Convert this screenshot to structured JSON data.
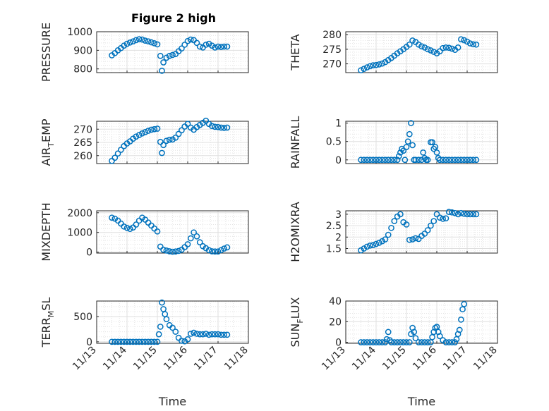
{
  "figure": {
    "title": "Figure 2 high"
  },
  "colors": {
    "series": "#0072bd",
    "axes": "#262626",
    "grid": "#dfdfdf",
    "background": "#ffffff"
  },
  "chart_data": [
    {
      "type": "scatter",
      "id": "pressure",
      "title": "Figure 2 high",
      "ylabel": "PRESSURE",
      "xlim": [
        0,
        5
      ],
      "ylim": [
        780,
        1000
      ],
      "yticks": [
        800,
        900,
        1000
      ],
      "yticklabels": [
        "800",
        "900",
        "1000"
      ],
      "xtick_labels": [],
      "xlabel": "",
      "grid": true,
      "x": [
        0.5,
        0.6,
        0.7,
        0.8,
        0.9,
        1.0,
        1.1,
        1.2,
        1.3,
        1.4,
        1.5,
        1.6,
        1.7,
        1.8,
        1.9,
        2.0,
        2.1,
        2.15,
        2.2,
        2.3,
        2.4,
        2.5,
        2.6,
        2.7,
        2.8,
        2.9,
        3.0,
        3.1,
        3.2,
        3.3,
        3.4,
        3.5,
        3.6,
        3.7,
        3.8,
        3.9,
        4.0,
        4.1,
        4.2,
        4.3
      ],
      "y": [
        873,
        885,
        900,
        912,
        925,
        935,
        942,
        948,
        955,
        960,
        958,
        952,
        948,
        943,
        938,
        932,
        870,
        790,
        835,
        860,
        870,
        875,
        880,
        895,
        910,
        930,
        950,
        958,
        955,
        940,
        920,
        915,
        930,
        935,
        925,
        915,
        920,
        918,
        920,
        920
      ]
    },
    {
      "type": "scatter",
      "id": "theta",
      "ylabel": "THETA",
      "xlim": [
        0,
        5
      ],
      "ylim": [
        267,
        281
      ],
      "yticks": [
        270,
        275,
        280
      ],
      "yticklabels": [
        "270",
        "275",
        "280"
      ],
      "xtick_labels": [],
      "xlabel": "",
      "grid": true,
      "x": [
        0.5,
        0.6,
        0.7,
        0.8,
        0.9,
        1.0,
        1.1,
        1.2,
        1.3,
        1.4,
        1.5,
        1.6,
        1.7,
        1.8,
        1.9,
        2.0,
        2.1,
        2.2,
        2.3,
        2.4,
        2.5,
        2.6,
        2.7,
        2.8,
        2.9,
        3.0,
        3.1,
        3.2,
        3.3,
        3.4,
        3.5,
        3.6,
        3.7,
        3.8,
        3.9,
        4.0,
        4.1,
        4.2,
        4.3
      ],
      "y": [
        267.8,
        268.3,
        268.8,
        269.2,
        269.5,
        269.6,
        269.8,
        270.1,
        270.6,
        271.3,
        272.0,
        272.8,
        273.6,
        274.3,
        275.0,
        275.8,
        276.6,
        278.0,
        277.5,
        276.6,
        276.0,
        275.6,
        275.0,
        274.6,
        274.1,
        273.6,
        274.3,
        275.4,
        275.6,
        275.5,
        275.2,
        274.8,
        275.6,
        278.4,
        278.1,
        277.6,
        277.0,
        276.7,
        276.6
      ]
    },
    {
      "type": "scatter",
      "id": "air_temp",
      "ylabel": "AIR_TEMP",
      "ylabel_parts": {
        "main": "AIR",
        "sub": "T",
        "rest": "EMP"
      },
      "xlim": [
        0,
        5
      ],
      "ylim": [
        257,
        273
      ],
      "yticks": [
        260,
        265,
        270
      ],
      "yticklabels": [
        "260",
        "265",
        "270"
      ],
      "xtick_labels": [],
      "xlabel": "",
      "grid": true,
      "x": [
        0.5,
        0.6,
        0.7,
        0.8,
        0.9,
        1.0,
        1.1,
        1.2,
        1.3,
        1.4,
        1.5,
        1.6,
        1.7,
        1.8,
        1.9,
        2.0,
        2.1,
        2.15,
        2.2,
        2.3,
        2.4,
        2.5,
        2.6,
        2.7,
        2.8,
        2.9,
        3.0,
        3.1,
        3.2,
        3.3,
        3.4,
        3.5,
        3.6,
        3.7,
        3.8,
        3.9,
        4.0,
        4.1,
        4.2,
        4.3
      ],
      "y": [
        258.0,
        259.2,
        260.8,
        262.2,
        263.6,
        264.6,
        265.4,
        266.4,
        267.2,
        267.8,
        268.4,
        268.9,
        269.4,
        269.8,
        270.0,
        270.2,
        265.2,
        261.0,
        264.0,
        265.6,
        266.0,
        266.1,
        266.8,
        268.2,
        269.6,
        271.0,
        272.0,
        270.6,
        269.8,
        270.8,
        271.6,
        272.4,
        273.2,
        272.0,
        271.2,
        270.9,
        270.8,
        270.6,
        270.5,
        270.6
      ]
    },
    {
      "type": "scatter",
      "id": "rainfall",
      "ylabel": "RAINFALL",
      "xlim": [
        0,
        5
      ],
      "ylim": [
        -0.1,
        1.05
      ],
      "yticks": [
        0,
        0.5,
        1
      ],
      "yticklabels": [
        "0",
        "0.5",
        "1"
      ],
      "xtick_labels": [],
      "xlabel": "",
      "grid": true,
      "x": [
        0.5,
        0.6,
        0.7,
        0.8,
        0.9,
        1.0,
        1.1,
        1.2,
        1.3,
        1.4,
        1.5,
        1.6,
        1.7,
        1.75,
        1.8,
        1.85,
        1.9,
        1.95,
        2.0,
        2.05,
        2.1,
        2.15,
        2.2,
        2.25,
        2.3,
        2.4,
        2.5,
        2.55,
        2.6,
        2.65,
        2.7,
        2.8,
        2.85,
        2.9,
        2.95,
        3.0,
        3.05,
        3.1,
        3.2,
        3.3,
        3.4,
        3.5,
        3.6,
        3.7,
        3.8,
        3.9,
        4.0,
        4.1,
        4.2,
        4.3
      ],
      "y": [
        0,
        0,
        0,
        0,
        0,
        0,
        0,
        0,
        0,
        0,
        0,
        0,
        0,
        0.1,
        0.2,
        0.3,
        0.25,
        0,
        0.35,
        0.5,
        0.7,
        1.0,
        0.4,
        0,
        0,
        0,
        0,
        0.2,
        0.05,
        0,
        0,
        0.48,
        0.48,
        0.3,
        0.35,
        0.2,
        0.05,
        0,
        0,
        0,
        0,
        0,
        0,
        0,
        0,
        0,
        0,
        0,
        0,
        0
      ]
    },
    {
      "type": "scatter",
      "id": "mixdepth",
      "ylabel": "MIXDEPTH",
      "xlim": [
        0,
        5
      ],
      "ylim": [
        -50,
        2100
      ],
      "yticks": [
        0,
        1000,
        2000
      ],
      "yticklabels": [
        "0",
        "1000",
        "2000"
      ],
      "xtick_labels": [],
      "xlabel": "",
      "grid": true,
      "x": [
        0.5,
        0.6,
        0.7,
        0.8,
        0.9,
        1.0,
        1.1,
        1.2,
        1.3,
        1.4,
        1.5,
        1.6,
        1.7,
        1.8,
        1.9,
        2.0,
        2.1,
        2.2,
        2.3,
        2.4,
        2.5,
        2.6,
        2.7,
        2.8,
        2.9,
        3.0,
        3.1,
        3.2,
        3.3,
        3.4,
        3.5,
        3.6,
        3.7,
        3.8,
        3.9,
        4.0,
        4.1,
        4.2,
        4.3
      ],
      "y": [
        1750,
        1700,
        1600,
        1450,
        1300,
        1230,
        1180,
        1250,
        1400,
        1600,
        1750,
        1650,
        1500,
        1350,
        1200,
        1050,
        280,
        120,
        80,
        40,
        20,
        30,
        60,
        120,
        250,
        400,
        700,
        1000,
        800,
        500,
        300,
        200,
        100,
        40,
        30,
        30,
        100,
        180,
        240
      ]
    },
    {
      "type": "scatter",
      "id": "h2omixra",
      "ylabel": "H2OMIXRA",
      "xlim": [
        0,
        5
      ],
      "ylim": [
        1.3,
        3.15
      ],
      "yticks": [
        1.5,
        2,
        2.5,
        3
      ],
      "yticklabels": [
        "1.5",
        "2",
        "2.5",
        "3"
      ],
      "xtick_labels": [],
      "xlabel": "",
      "grid": true,
      "x": [
        0.5,
        0.6,
        0.7,
        0.8,
        0.9,
        1.0,
        1.1,
        1.2,
        1.3,
        1.4,
        1.5,
        1.6,
        1.7,
        1.8,
        1.9,
        2.0,
        2.1,
        2.2,
        2.3,
        2.4,
        2.5,
        2.6,
        2.7,
        2.8,
        2.9,
        3.0,
        3.1,
        3.2,
        3.3,
        3.4,
        3.5,
        3.6,
        3.7,
        3.8,
        3.9,
        4.0,
        4.1,
        4.2,
        4.3
      ],
      "y": [
        1.42,
        1.5,
        1.58,
        1.63,
        1.65,
        1.7,
        1.75,
        1.82,
        1.9,
        2.1,
        2.4,
        2.7,
        2.9,
        3.0,
        2.65,
        2.55,
        1.88,
        1.9,
        1.95,
        1.92,
        2.05,
        2.15,
        2.3,
        2.5,
        2.7,
        3.0,
        2.85,
        2.8,
        2.82,
        3.1,
        3.08,
        3.05,
        3.0,
        3.05,
        3.02,
        3.0,
        3.0,
        3.0,
        3.0
      ]
    },
    {
      "type": "scatter",
      "id": "terr_msl",
      "ylabel": "TERR_MSL",
      "ylabel_parts": {
        "main": "TERR",
        "sub": "M",
        "rest": "SL"
      },
      "xlim": [
        0,
        5
      ],
      "ylim": [
        -30,
        810
      ],
      "yticks": [
        0,
        500
      ],
      "yticklabels": [
        "0",
        "500"
      ],
      "xtick_labels": [
        "11/13",
        "11/14",
        "11/15",
        "11/16",
        "11/17",
        "11/18"
      ],
      "xlabel": "Time",
      "grid": true,
      "x": [
        0.5,
        0.6,
        0.7,
        0.8,
        0.9,
        1.0,
        1.1,
        1.2,
        1.3,
        1.4,
        1.5,
        1.6,
        1.7,
        1.8,
        1.9,
        2.0,
        2.05,
        2.1,
        2.15,
        2.2,
        2.25,
        2.3,
        2.4,
        2.5,
        2.6,
        2.7,
        2.8,
        2.9,
        3.0,
        3.1,
        3.2,
        3.3,
        3.4,
        3.5,
        3.6,
        3.7,
        3.8,
        3.9,
        4.0,
        4.1,
        4.2,
        4.3
      ],
      "y": [
        0,
        0,
        0,
        0,
        0,
        0,
        0,
        0,
        0,
        0,
        0,
        0,
        0,
        0,
        0,
        0,
        150,
        300,
        780,
        650,
        550,
        450,
        330,
        280,
        200,
        80,
        20,
        10,
        50,
        160,
        180,
        160,
        150,
        150,
        160,
        140,
        150,
        150,
        150,
        140,
        140,
        140
      ]
    },
    {
      "type": "scatter",
      "id": "sun_flux",
      "ylabel": "SUN_FLUX",
      "ylabel_parts": {
        "main": "SUN",
        "sub": "F",
        "rest": "LUX"
      },
      "xlim": [
        0,
        5
      ],
      "ylim": [
        -1,
        40
      ],
      "yticks": [
        0,
        20,
        40
      ],
      "yticklabels": [
        "0",
        "20",
        "40"
      ],
      "xtick_labels": [
        "11/13",
        "11/14",
        "11/15",
        "11/16",
        "11/17",
        "11/18"
      ],
      "xlabel": "Time",
      "grid": true,
      "x": [
        0.5,
        0.6,
        0.7,
        0.8,
        0.9,
        1.0,
        1.1,
        1.2,
        1.3,
        1.35,
        1.4,
        1.45,
        1.5,
        1.6,
        1.7,
        1.8,
        1.9,
        2.0,
        2.1,
        2.15,
        2.2,
        2.25,
        2.3,
        2.4,
        2.5,
        2.6,
        2.7,
        2.8,
        2.85,
        2.9,
        2.95,
        3.0,
        3.05,
        3.1,
        3.2,
        3.3,
        3.4,
        3.5,
        3.6,
        3.65,
        3.7,
        3.75,
        3.8,
        3.85,
        3.9
      ],
      "y": [
        0,
        0,
        0,
        0,
        0,
        0,
        0,
        0,
        0,
        3,
        10,
        2,
        0,
        0,
        0,
        0,
        0,
        0,
        0,
        8,
        14,
        10,
        4,
        0,
        0,
        0,
        0,
        0,
        5,
        10,
        14,
        15,
        10,
        6,
        2,
        0,
        0,
        0,
        0,
        3,
        8,
        12,
        22,
        32,
        37
      ]
    }
  ]
}
